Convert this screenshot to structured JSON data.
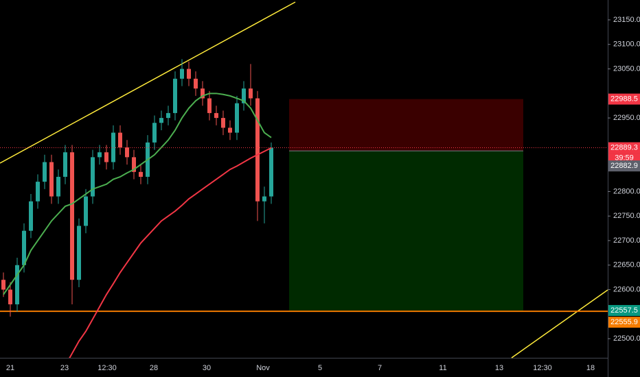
{
  "chart_data": {
    "type": "candlestick",
    "ylim": [
      22461,
      23190.5
    ],
    "yticks": [
      {
        "value": 22500,
        "label": "22500.0"
      },
      {
        "value": 22600,
        "label": "22600.0"
      },
      {
        "value": 22650,
        "label": "22650.0"
      },
      {
        "value": 22700,
        "label": "22700.0"
      },
      {
        "value": 22750,
        "label": "22750.0"
      },
      {
        "value": 22800,
        "label": "22800.0"
      },
      {
        "value": 22950,
        "label": "22950.0"
      },
      {
        "value": 23050,
        "label": "23050.0"
      },
      {
        "value": 23100,
        "label": "23100.0"
      },
      {
        "value": 23150,
        "label": "23150.0"
      }
    ],
    "x_labels": [
      "21",
      "23",
      "12:30",
      "28",
      "30",
      "Nov",
      "5",
      "7",
      "11",
      "13",
      "12:30",
      "18"
    ],
    "up_color": "#26a69a",
    "down_color": "#ef5350",
    "open": [
      22620,
      22600,
      22570,
      22650,
      22720,
      22780,
      22820,
      22860,
      22790,
      22830,
      22880,
      22620,
      22730,
      22790,
      22870,
      22880,
      22860,
      22920,
      22890,
      22870,
      22840,
      22830,
      22900,
      22940,
      22950,
      22960,
      23030,
      23050,
      23030,
      23010,
      22990,
      22960,
      22950,
      22930,
      22920,
      22980,
      23010,
      22990,
      22780,
      22790
    ],
    "high": [
      22635,
      22615,
      22665,
      22735,
      22795,
      22835,
      22875,
      22875,
      22845,
      22895,
      22895,
      22745,
      22805,
      22885,
      22895,
      22895,
      22935,
      22935,
      22905,
      22885,
      22855,
      22915,
      22955,
      22965,
      22975,
      23045,
      23070,
      23065,
      23045,
      23025,
      23005,
      22975,
      22965,
      22945,
      22995,
      23025,
      23060,
      23005,
      22810,
      22900
    ],
    "low": [
      22585,
      22545,
      22555,
      22635,
      22705,
      22765,
      22805,
      22775,
      22775,
      22815,
      22570,
      22605,
      22715,
      22775,
      22855,
      22845,
      22845,
      22875,
      22855,
      22825,
      22815,
      22815,
      22885,
      22925,
      22935,
      22945,
      23015,
      23015,
      22995,
      22975,
      22945,
      22935,
      22915,
      22905,
      22905,
      22965,
      22975,
      22740,
      22735,
      22775
    ],
    "close": [
      22600,
      22570,
      22650,
      22720,
      22780,
      22820,
      22860,
      22790,
      22830,
      22880,
      22620,
      22730,
      22790,
      22870,
      22880,
      22860,
      22920,
      22890,
      22870,
      22840,
      22830,
      22900,
      22940,
      22950,
      22960,
      23030,
      23050,
      23030,
      23010,
      22990,
      22960,
      22950,
      22930,
      22920,
      22980,
      23010,
      22990,
      22780,
      22790,
      22889.3
    ],
    "series": [
      {
        "color": "#4caf50",
        "values": [
          22590,
          22610,
          22630,
          22650,
          22680,
          22700,
          22720,
          22740,
          22755,
          22770,
          22775,
          22785,
          22795,
          22805,
          22810,
          22815,
          22825,
          22830,
          22838,
          22845,
          22855,
          22865,
          22875,
          22890,
          22905,
          22925,
          22950,
          22970,
          22985,
          22995,
          23000,
          23000,
          22998,
          22995,
          22990,
          22985,
          22970,
          22945,
          22920,
          22910
        ]
      },
      {
        "color": "#f23645",
        "values": [
          null,
          null,
          null,
          null,
          null,
          null,
          null,
          null,
          null,
          22445,
          22470,
          22495,
          22515,
          22540,
          22565,
          22590,
          22612,
          22635,
          22655,
          22675,
          22695,
          22710,
          22725,
          22740,
          22750,
          22760,
          22772,
          22785,
          22795,
          22805,
          22815,
          22825,
          22835,
          22845,
          22852,
          22860,
          22868,
          22875,
          22882,
          22889
        ]
      }
    ],
    "position": {
      "stop": 22988.5,
      "entry": 22882.9,
      "target": 22557.5
    },
    "support": {
      "value": 22555.9,
      "color": "#f57c00"
    },
    "price_labels": [
      {
        "value": 22988.5,
        "color": "#f23645"
      },
      {
        "value": 22889.3,
        "color": "#f23645"
      },
      {
        "value": 22882.9,
        "color": "#5d606b"
      },
      {
        "value": 22557.5,
        "color": "#089981"
      },
      {
        "value": 22555.9,
        "color": "#f57c00"
      }
    ],
    "countdown": "39:59"
  }
}
